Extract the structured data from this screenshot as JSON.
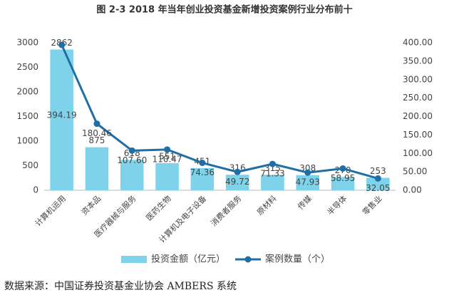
{
  "chart_data": {
    "type": "bar-line",
    "title": "图 2-3 2018 年当年创业投资基金新增投资案例行业分布前十",
    "categories": [
      "计算机运用",
      "资本品",
      "医疗器械与服务",
      "医药生物",
      "计算机及电子设备",
      "消费者服务",
      "原材料",
      "传媒",
      "半导体",
      "零售业"
    ],
    "series": [
      {
        "name": "投资金额（亿元）",
        "color": "#7ed3ea",
        "type": "bar",
        "values": [
          2862,
          875,
          618,
          551,
          451,
          316,
          315,
          308,
          270,
          253
        ]
      },
      {
        "name": "案例数量（个）",
        "color": "#1f6fa6",
        "type": "line",
        "axis": "y2",
        "values": [
          394.19,
          180.46,
          107.6,
          110.47,
          74.36,
          49.72,
          71.33,
          47.93,
          58.95,
          32.05
        ],
        "value_labels": [
          "394.19",
          "180.46",
          "107.60",
          "110.47",
          "74.36",
          "49.72",
          "71.33",
          "47.93",
          "58.95",
          "32.05"
        ]
      }
    ],
    "ylim": [
      0,
      3000
    ],
    "yticks": [
      0,
      500,
      1000,
      1500,
      2000,
      2500,
      3000
    ],
    "y2lim": [
      0,
      400
    ],
    "y2ticks": [
      {
        "value": 0,
        "label": "0.00"
      },
      {
        "value": 50,
        "label": "50.00"
      },
      {
        "value": 100,
        "label": "100.00"
      },
      {
        "value": 150,
        "label": "150.00"
      },
      {
        "value": 200,
        "label": "200.00"
      },
      {
        "value": 250,
        "label": "250.00"
      },
      {
        "value": 300,
        "label": "300.00"
      },
      {
        "value": 350,
        "label": "350.00"
      },
      {
        "value": 400,
        "label": "400.00"
      }
    ],
    "source": "数据来源：中国证券投资基金业协会 AMBERS 系统"
  }
}
